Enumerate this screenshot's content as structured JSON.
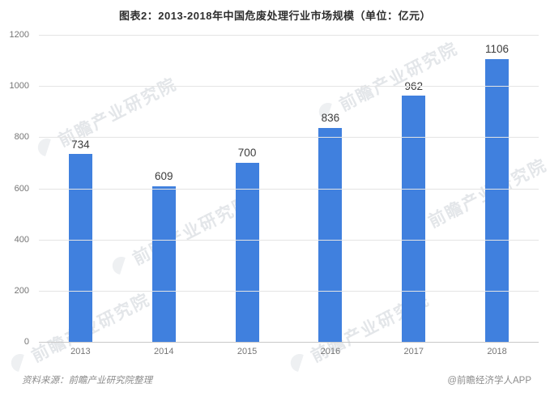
{
  "title": "图表2：2013-2018年中国危废处理行业市场规模（单位：亿元）",
  "chart_data": {
    "type": "bar",
    "categories": [
      "2013",
      "2014",
      "2015",
      "2016",
      "2017",
      "2018"
    ],
    "values": [
      734,
      609,
      700,
      836,
      962,
      1106
    ],
    "title": "图表2：2013-2018年中国危废处理行业市场规模（单位：亿元）",
    "xlabel": "",
    "ylabel": "",
    "ylim": [
      0,
      1200
    ],
    "ytick_step": 200,
    "yticks": [
      0,
      200,
      400,
      600,
      800,
      1000,
      1200
    ],
    "grid": true,
    "legend_position": "none",
    "bar_color": "#4080de",
    "value_label_color": "#3c3c3c"
  },
  "footer": {
    "source": "资料来源：前瞻产业研究院整理",
    "credit": "@前瞻经济学人APP"
  },
  "watermark": {
    "text": "前瞻产业研究院"
  }
}
